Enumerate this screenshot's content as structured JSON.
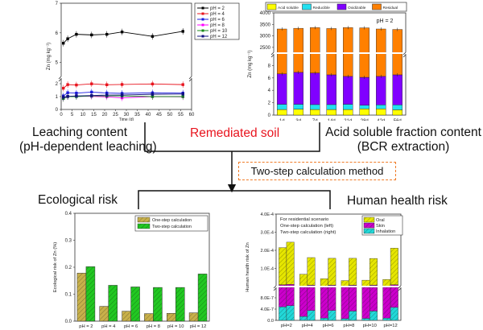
{
  "flow": {
    "leaching_line1": "Leaching content",
    "leaching_line2": "(pH-dependent leaching)",
    "remediated": "Remediated soil",
    "acid_line1": "Acid soluble fraction content",
    "acid_line2": "(BCR extraction)",
    "method": "Two-step calculation method",
    "eco_title": "Ecological risk",
    "health_title": "Human health risk"
  },
  "colors": {
    "remediated_text": "#e8141e",
    "method_border": "#f07c28"
  },
  "chart_data": [
    {
      "id": "leaching",
      "type": "line",
      "title": "",
      "xlabel": "Time (d)",
      "ylabel": "Zn (mg kg⁻¹)",
      "xlim": [
        0,
        60
      ],
      "xticks": [
        0,
        5,
        10,
        15,
        20,
        25,
        30,
        35,
        40,
        45,
        50,
        55,
        60
      ],
      "ylim_lower": [
        0,
        2.5
      ],
      "ylim_upper": [
        4.5,
        7
      ],
      "yticks": [
        0,
        1,
        2,
        5,
        6,
        7
      ],
      "axis_break": true,
      "legend": "top-right-outside",
      "x": [
        1,
        3,
        7,
        14,
        21,
        28,
        42,
        56
      ],
      "series": [
        {
          "name": "pH = 2",
          "color": "#000000",
          "marker": "square",
          "values": [
            5.65,
            5.8,
            5.95,
            5.93,
            5.95,
            6.03,
            5.88,
            6.05
          ]
        },
        {
          "name": "pH = 4",
          "color": "#e8141e",
          "marker": "circle",
          "values": [
            1.65,
            1.93,
            1.9,
            1.99,
            1.92,
            1.94,
            1.98,
            1.93
          ]
        },
        {
          "name": "pH = 6",
          "color": "#1a1ae0",
          "marker": "triangle-up",
          "values": [
            1.05,
            1.3,
            1.27,
            1.35,
            1.28,
            1.25,
            1.29,
            1.27
          ]
        },
        {
          "name": "pH = 8",
          "color": "#ff00ff",
          "marker": "triangle-down",
          "values": [
            0.85,
            1.0,
            1.02,
            1.02,
            0.98,
            0.9,
            1.0,
            0.98
          ]
        },
        {
          "name": "pH = 10",
          "color": "#1a8a1a",
          "marker": "diamond",
          "values": [
            0.85,
            1.0,
            1.0,
            1.05,
            1.05,
            1.05,
            1.0,
            1.0
          ]
        },
        {
          "name": "pH = 12",
          "color": "#101080",
          "marker": "triangle-left",
          "values": [
            0.95,
            1.02,
            1.05,
            1.08,
            1.12,
            1.12,
            1.18,
            1.2
          ]
        }
      ]
    },
    {
      "id": "bcr",
      "type": "bar",
      "stacked": true,
      "title": "",
      "annotation": "pH = 2",
      "xlabel": "",
      "ylabel": "Zn (mg kg⁻¹)",
      "categories": [
        "1d",
        "3d",
        "7d",
        "14d",
        "21d",
        "28d",
        "42d",
        "56d"
      ],
      "ylim_lower": [
        0,
        10
      ],
      "ylim_upper": [
        2250,
        4000
      ],
      "yticks_lower": [
        0,
        2,
        4,
        6,
        8
      ],
      "yticks_upper": [
        2500,
        3000,
        3500,
        4000
      ],
      "axis_break": true,
      "legend": "top",
      "series": [
        {
          "name": "Acid soluble",
          "color": "#ffff00",
          "values": [
            0.9,
            0.95,
            0.9,
            0.9,
            0.9,
            1.0,
            1.0,
            0.85
          ]
        },
        {
          "name": "Reducible",
          "color": "#22e0f0",
          "values": [
            0.85,
            0.8,
            0.8,
            0.8,
            0.85,
            0.6,
            0.65,
            0.8
          ]
        },
        {
          "name": "Oxidizable",
          "color": "#8000ff",
          "values": [
            4.9,
            5.15,
            5.1,
            4.8,
            4.5,
            4.5,
            4.6,
            4.85
          ]
        },
        {
          "name": "Residual",
          "color": "#ff8000",
          "totals": [
            3300,
            3330,
            3360,
            3320,
            3360,
            3350,
            3300,
            3280
          ]
        }
      ]
    },
    {
      "id": "eco",
      "type": "bar",
      "title": "",
      "xlabel": "",
      "ylabel": "Ecological risk of Zn (%)",
      "categories": [
        "pH = 2",
        "pH = 4",
        "pH = 6",
        "pH = 8",
        "pH = 10",
        "pH = 12"
      ],
      "ylim": [
        0,
        0.4
      ],
      "yticks": [
        "0.0",
        "0.1",
        "0.2",
        "0.3",
        "0.4"
      ],
      "legend": "top-right",
      "series": [
        {
          "name": "One-step calculation",
          "color": "#c8b04a",
          "values": [
            0.178,
            0.055,
            0.037,
            0.028,
            0.029,
            0.031
          ]
        },
        {
          "name": "Two-step calculation",
          "color": "#22c822",
          "values": [
            0.202,
            0.133,
            0.127,
            0.125,
            0.125,
            0.175
          ]
        }
      ]
    },
    {
      "id": "health",
      "type": "bar",
      "stacked": true,
      "title": "",
      "xlabel": "",
      "ylabel": "Human health risk of Zn",
      "annotation": [
        "For residential scenario",
        "One-step calculation (left)",
        "Two-step calculation (right)"
      ],
      "categories": [
        "pH=2",
        "pH=4",
        "pH=6",
        "pH=8",
        "pH=10",
        "pH=12"
      ],
      "ylim_lower": [
        0,
        1.2e-06
      ],
      "ylim_upper": [
        0,
        0.0004
      ],
      "yticks_lower": [
        "0.0",
        "4.0E-7",
        "8.0E-7"
      ],
      "yticks_upper": [
        "1.0E-4",
        "2.0E-4",
        "3.0E-4",
        "4.0E-4"
      ],
      "axis_break": true,
      "legend": "top-right",
      "series": [
        {
          "name": "Inhalation",
          "color": "#22d8d8",
          "one_step": [
            4.8e-07,
            1.4e-07,
            8e-08,
            6e-08,
            7e-08,
            8e-08
          ],
          "two_step": [
            5.2e-07,
            3.5e-07,
            3.5e-07,
            3.3e-07,
            3.3e-07,
            4.6e-07
          ]
        },
        {
          "name": "Skin",
          "color": "#cc00cc",
          "one_step": [
            1e-05,
            3e-06,
            2e-06,
            2e-06,
            2e-06,
            2e-06
          ],
          "two_step": [
            1.2e-05,
            8e-06,
            8e-06,
            8e-06,
            8e-06,
            1e-05
          ]
        },
        {
          "name": "Oral",
          "color": "#e6e600",
          "totals_one_step": [
            0.000215,
            6.8e-05,
            4.3e-05,
            3.3e-05,
            3.5e-05,
            3.9e-05
          ],
          "totals_two_step": [
            0.000245,
            0.00016,
            0.000156,
            0.000156,
            0.000155,
            0.000212
          ]
        }
      ]
    }
  ]
}
